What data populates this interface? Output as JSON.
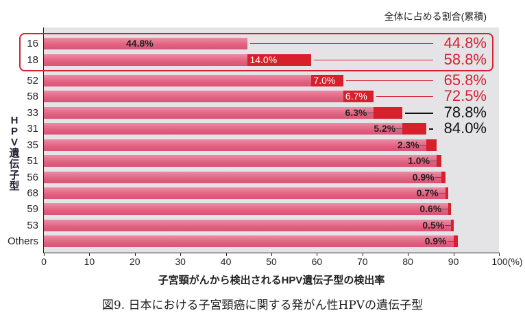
{
  "chart_data": {
    "type": "bar",
    "title": "図9. 日本における子宮頸癌に関する発がん性HPVの遺伝子型",
    "xlabel": "子宮頸がんから検出されるHPV遺伝子型の検出率",
    "ylabel": "HPV遺伝子型",
    "cumulative_header": "全体に占める割合(累積)",
    "xlim": [
      0,
      100
    ],
    "xticks": [
      "0",
      "10",
      "20",
      "30",
      "40",
      "50",
      "60",
      "70",
      "80",
      "90",
      "100(%)"
    ],
    "categories": [
      "16",
      "18",
      "52",
      "58",
      "33",
      "31",
      "35",
      "51",
      "56",
      "68",
      "59",
      "53",
      "Others"
    ],
    "values": [
      44.8,
      14.0,
      7.0,
      6.7,
      6.3,
      5.2,
      2.3,
      1.0,
      0.9,
      0.7,
      0.6,
      0.5,
      0.9
    ],
    "value_labels": [
      "44.8%",
      "14.0%",
      "7.0%",
      "6.7%",
      "6.3%",
      "5.2%",
      "2.3%",
      "1.0%",
      "0.9%",
      "0.7%",
      "0.6%",
      "0.5%",
      "0.9%"
    ],
    "cumulative": [
      44.8,
      58.8,
      65.8,
      72.5,
      78.8,
      84.0,
      86.3,
      87.3,
      88.2,
      88.9,
      89.5,
      90.0,
      90.9
    ],
    "cumulative_labels": [
      "44.8%",
      "58.8%",
      "65.8%",
      "72.5%",
      "78.8%",
      "84.0%"
    ],
    "cumulative_colors": [
      "#d42030",
      "#d42030",
      "#d42030",
      "#d42030",
      "#111111",
      "#111111"
    ],
    "highlighted": [
      "16",
      "18"
    ]
  },
  "colors": {
    "bar": "#e2607f",
    "segment": "#d7202b",
    "highlight": "#d42030"
  }
}
